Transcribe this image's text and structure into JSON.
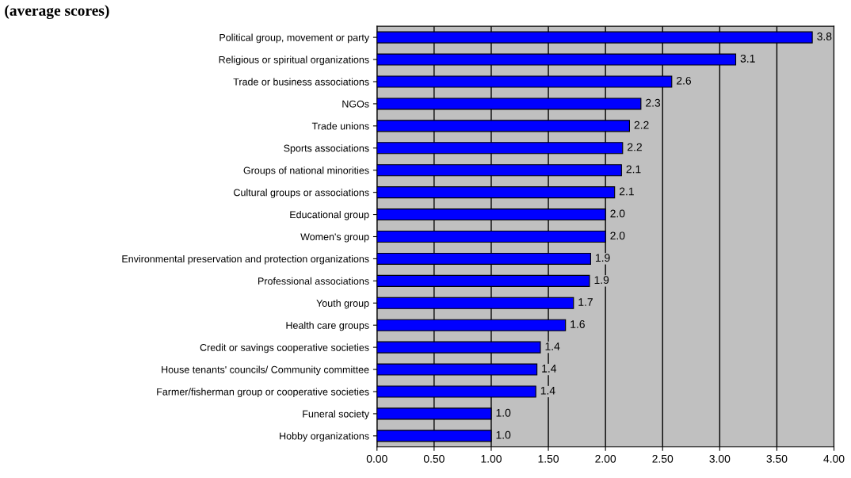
{
  "chart_data": {
    "type": "bar",
    "orientation": "horizontal",
    "title": "(average scores)",
    "categories": [
      "Political group, movement or party",
      "Religious or spiritual organizations",
      "Trade or business associations",
      "NGOs",
      "Trade unions",
      "Sports associations",
      "Groups of national minorities",
      "Cultural groups or associations",
      "Educational group",
      "Women's group",
      "Environmental preservation and protection organizations",
      "Professional associations",
      "Youth group",
      "Health care groups",
      "Credit or savings cooperative societies",
      "House tenants' councils/ Community committee",
      "Farmer/fisherman group or cooperative societies",
      "Funeral society",
      "Hobby organizations"
    ],
    "values": [
      3.81,
      3.14,
      2.58,
      2.31,
      2.21,
      2.15,
      2.14,
      2.08,
      2.0,
      2.0,
      1.87,
      1.86,
      1.72,
      1.65,
      1.43,
      1.4,
      1.39,
      1.0,
      1.0
    ],
    "value_labels": [
      "3.8",
      "3.1",
      "2.6",
      "2.3",
      "2.2",
      "2.2",
      "2.1",
      "2.1",
      "2.0",
      "2.0",
      "1.9",
      "1.9",
      "1.7",
      "1.6",
      "1.4",
      "1.4",
      "1.4",
      "1.0",
      "1.0"
    ],
    "color": "#0000ff",
    "xlim": [
      0,
      4
    ],
    "xticks": [
      {
        "value": 0,
        "label": "0.00"
      },
      {
        "value": 0.5,
        "label": "0.50"
      },
      {
        "value": 1,
        "label": "1.00"
      },
      {
        "value": 1.5,
        "label": "1.50"
      },
      {
        "value": 2,
        "label": "2.00"
      },
      {
        "value": 2.5,
        "label": "2.50"
      },
      {
        "value": 3,
        "label": "3.00"
      },
      {
        "value": 3.5,
        "label": "3.50"
      },
      {
        "value": 4,
        "label": "4.00"
      }
    ],
    "grid": "x",
    "legend": false
  }
}
